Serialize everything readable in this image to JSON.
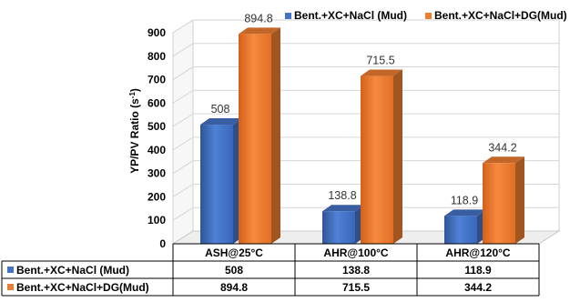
{
  "chart_data": {
    "type": "bar",
    "categories": [
      "ASH@25°C",
      "AHR@100°C",
      "AHR@120°C"
    ],
    "series": [
      {
        "name": "Bent.+XC+NaCl (Mud)",
        "values": [
          508,
          138.8,
          118.9
        ],
        "color": "#4472c4"
      },
      {
        "name": "Bent.+XC+NaCl+DG(Mud)",
        "values": [
          894.8,
          715.5,
          344.2
        ],
        "color": "#ed7d31"
      }
    ],
    "data_labels": [
      [
        "508",
        "138.8",
        "118.9"
      ],
      [
        "894.8",
        "715.5",
        "344.2"
      ]
    ],
    "table_values": [
      [
        "508",
        "138.8",
        "118.9"
      ],
      [
        "894.8",
        "715.5",
        "344.2"
      ]
    ],
    "y_ticks": [
      "0",
      "100",
      "200",
      "300",
      "400",
      "500",
      "600",
      "700",
      "800",
      "900"
    ],
    "ylabel_main": "YP/PV Ratio (s",
    "ylabel_sup": "-1",
    "ylabel_close": ")",
    "ylim": [
      0,
      900
    ],
    "grid": true,
    "style": "3d-column",
    "legend_placement": "top",
    "data_table": true
  }
}
